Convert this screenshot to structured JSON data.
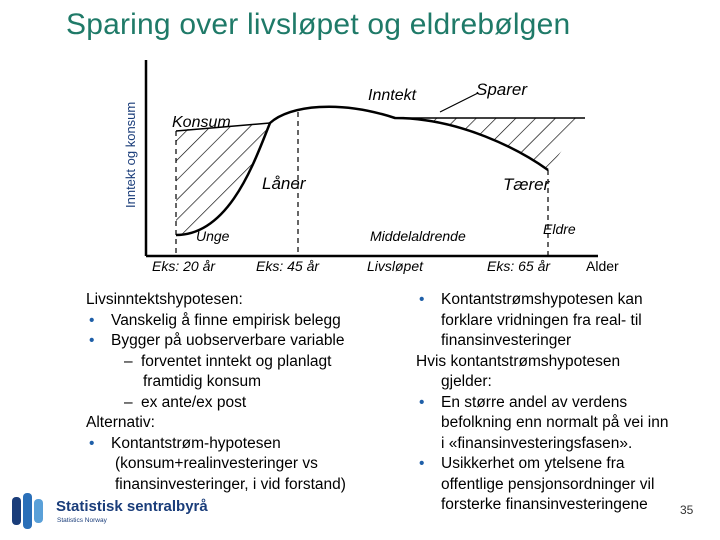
{
  "title": "Sparing over livsløpet og eldrebølgen",
  "diagram": {
    "y_axis_label": "Inntekt og konsum",
    "income_label": "Inntekt",
    "saver_label": "Sparer",
    "consumption_label": "Konsum",
    "borrower_label": "Låner",
    "dissaver_label": "Tærer",
    "young_label": "Unge",
    "middle_label": "Middelaldrende",
    "old_label": "Eldre",
    "ex_20": "Eks: 20 år",
    "ex_45": "Eks: 45 år",
    "lifecycle_label": "Livsløpet",
    "ex_65": "Eks: 65 år",
    "age_label": "Alder",
    "axis_color": "#000000"
  },
  "left_column": {
    "heading": "Livsinntektshypotesen:",
    "bullets": [
      "Vanskelig å finne empirisk belegg",
      "Bygger på uobserverbare variable"
    ],
    "sub1": "forventet inntekt og planlagt",
    "sub1_cont": "framtidig konsum",
    "sub2": "ex ante/ex post",
    "alt_heading": "Alternativ:",
    "alt_bullet": "Kontantstrøm-hypotesen",
    "alt_cont1": "(konsum+realinvesteringer vs",
    "alt_cont2": "finansinvesteringer, i vid forstand)"
  },
  "right_column": {
    "b1_l1": "Kontantstrømshypotesen kan",
    "b1_l2": "forklare vridningen fra real- til",
    "b1_l3": "finansinvesteringer",
    "if_l1": "Hvis kontantstrømshypotesen",
    "if_l2": "gjelder:",
    "b2_l1": "En større andel av verdens",
    "b2_l2": "befolkning enn normalt på vei inn",
    "b2_l3": "i «finansinvesteringsfasen».",
    "b3_l1": "Usikkerhet om ytelsene fra",
    "b3_l2": "offentlige pensjonsordninger vil",
    "b3_l3": "forsterke finansinvesteringene"
  },
  "footer": {
    "logo_name": "Statistisk sentralbyrå",
    "logo_sub": "Statistics Norway",
    "page_number": "35"
  },
  "bullet_symbol": "•",
  "dash_symbol": "–"
}
